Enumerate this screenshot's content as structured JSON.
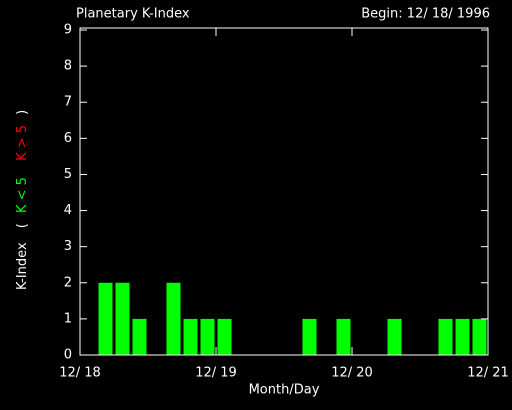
{
  "chart_data": {
    "type": "bar",
    "title": "Planetary K-Index",
    "subtitle": "Begin: 12/ 18/ 1996",
    "xlabel": "Month/Day",
    "ylabel": "K-Index",
    "legend_open": "(",
    "legend_close": ")",
    "legend": [
      {
        "label": "K < 5",
        "color": "#00ff00"
      },
      {
        "label": "K > 5",
        "color": "#ff0000"
      }
    ],
    "color": "#00ff00",
    "bar_width": 3,
    "x": [
      0,
      3,
      6,
      9,
      12,
      15,
      18,
      21,
      24,
      27,
      30,
      33,
      36,
      39,
      42,
      45,
      48,
      51,
      54,
      57,
      60,
      63,
      66,
      69
    ],
    "values": [
      0,
      2,
      2,
      1,
      0,
      2,
      1,
      1,
      1,
      0,
      0,
      0,
      0,
      1,
      0,
      1,
      0,
      0,
      1,
      0,
      0,
      1,
      1,
      1
    ],
    "xlim": [
      0,
      72
    ],
    "xticks": [
      {
        "value": 0,
        "label": "12/ 18"
      },
      {
        "value": 24,
        "label": "12/ 19"
      },
      {
        "value": 48,
        "label": "12/ 20"
      },
      {
        "value": 72,
        "label": "12/ 21"
      }
    ],
    "ylim": [
      0,
      9
    ],
    "yticks": [
      0,
      1,
      2,
      3,
      4,
      5,
      6,
      7,
      8,
      9
    ]
  }
}
